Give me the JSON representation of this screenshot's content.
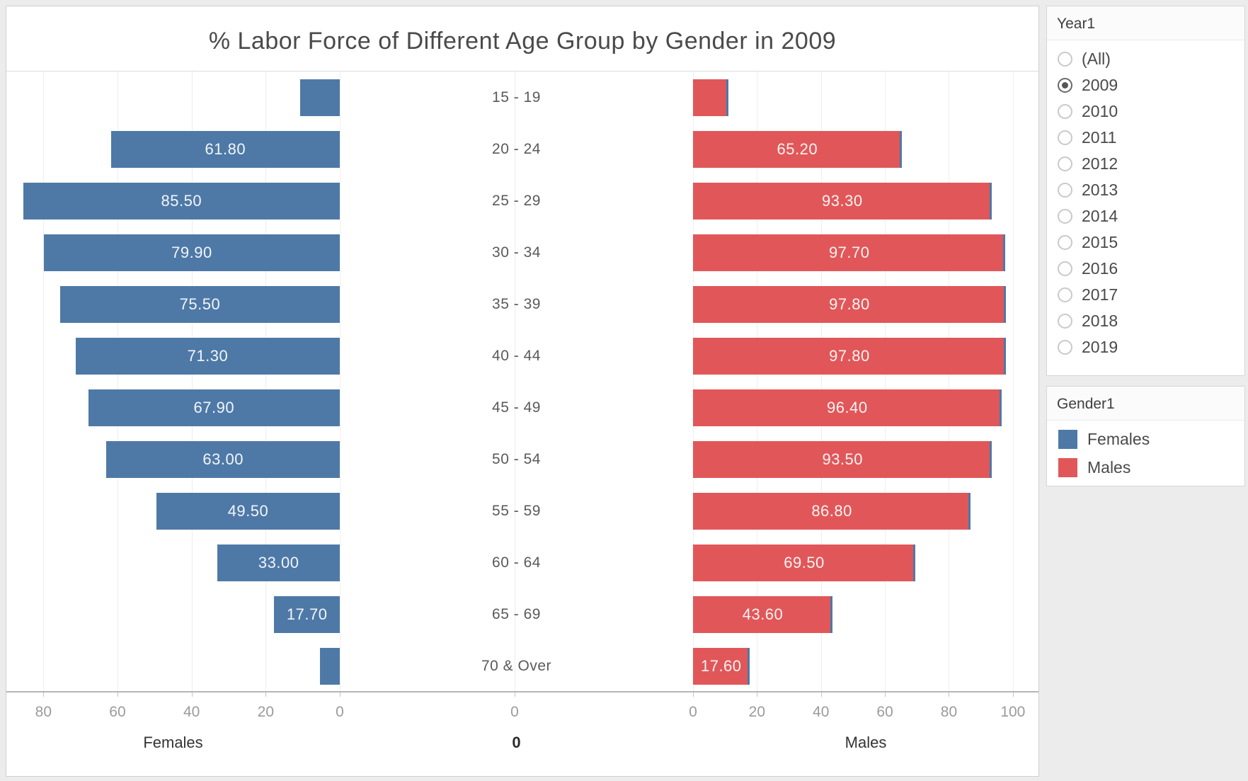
{
  "title": "% Labor Force of Different Age Group by Gender in 2009",
  "chart_data": {
    "type": "bar",
    "orientation": "horizontal-pyramid",
    "categories": [
      "15 - 19",
      "20 - 24",
      "25 - 29",
      "30 - 34",
      "35 - 39",
      "40 - 44",
      "45 - 49",
      "50 - 54",
      "55 - 59",
      "60 - 64",
      "65 - 69",
      "70 & Over"
    ],
    "series": [
      {
        "name": "Females",
        "color": "#4e79a7",
        "values": [
          10.7,
          61.8,
          85.5,
          79.9,
          75.5,
          71.3,
          67.9,
          63.0,
          49.5,
          33.0,
          17.7,
          5.4
        ],
        "display_labels": [
          "",
          "61.80",
          "85.50",
          "79.90",
          "75.50",
          "71.30",
          "67.90",
          "63.00",
          "49.50",
          "33.00",
          "17.70",
          ""
        ]
      },
      {
        "name": "Males",
        "color": "#e15759",
        "values": [
          11.1,
          65.2,
          93.3,
          97.7,
          97.8,
          97.8,
          96.4,
          93.5,
          86.8,
          69.5,
          43.6,
          17.6
        ],
        "display_labels": [
          "",
          "65.20",
          "93.30",
          "97.70",
          "97.80",
          "97.80",
          "96.40",
          "93.50",
          "86.80",
          "69.50",
          "43.60",
          "17.60"
        ]
      }
    ],
    "female_axis": {
      "title": "Females",
      "ticks": [
        80,
        60,
        40,
        20,
        0
      ],
      "max": 90,
      "reversed": true
    },
    "male_axis": {
      "title": "Males",
      "ticks": [
        0,
        20,
        40,
        60,
        80,
        100
      ],
      "max": 108
    },
    "center_axis": {
      "tick": "0",
      "title": "0"
    },
    "grid": true,
    "bar_edge_color": "#4e79a7"
  },
  "filters": {
    "year": {
      "title": "Year1",
      "options": [
        "(All)",
        "2009",
        "2010",
        "2011",
        "2012",
        "2013",
        "2014",
        "2015",
        "2016",
        "2017",
        "2018",
        "2019"
      ],
      "selected": "2009"
    }
  },
  "legend": {
    "title": "Gender1",
    "items": [
      {
        "label": "Females",
        "color": "#4e79a7"
      },
      {
        "label": "Males",
        "color": "#e15759"
      }
    ]
  }
}
